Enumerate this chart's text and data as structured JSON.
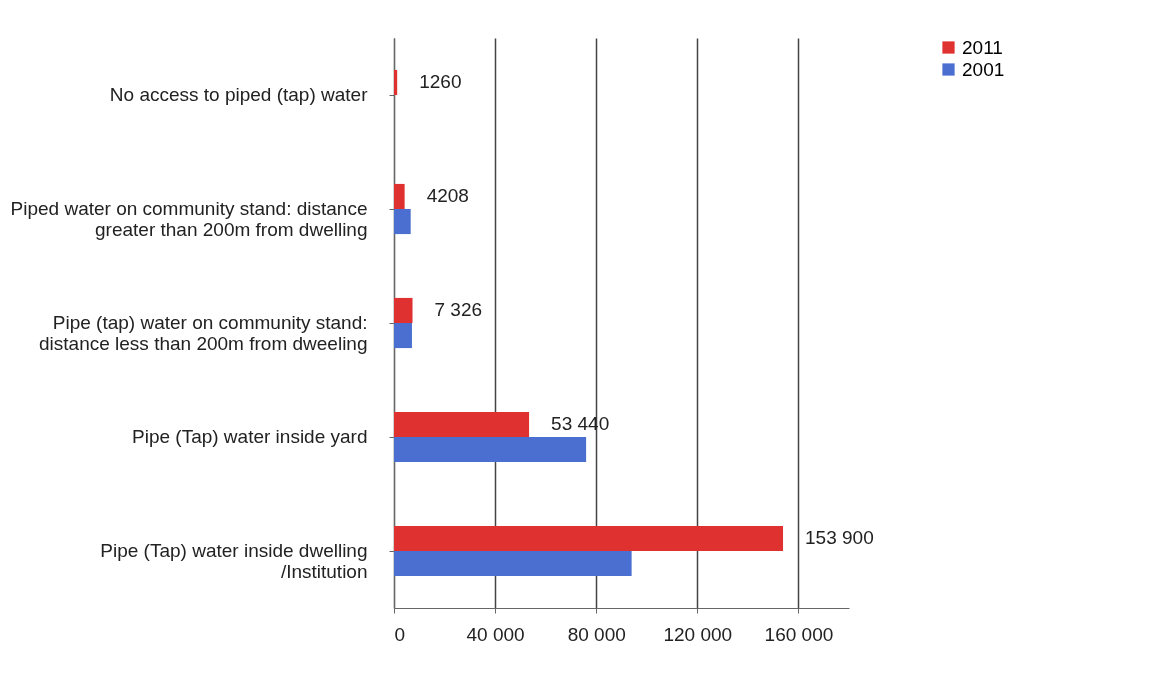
{
  "chart_data": {
    "type": "bar",
    "orientation": "horizontal",
    "categories": [
      "No access to piped (tap) water",
      "Piped water on community stand: distance greater than 200m from dwelling",
      "Pipe (tap) water on community stand: distance less than 200m from dweeling",
      "Pipe (Tap) water inside yard",
      "Pipe (Tap) water inside dwelling /Institution"
    ],
    "series": [
      {
        "name": "2011",
        "color": "#e03131",
        "values": [
          1260,
          4208,
          7326,
          53440,
          153900
        ],
        "value_labels": [
          "1260",
          "4208",
          "7 326",
          "53 440",
          "153 900"
        ]
      },
      {
        "name": "2001",
        "color": "#4a6fd0",
        "values": [
          null,
          6600,
          7100,
          76000,
          94000
        ]
      }
    ],
    "xlim": [
      0,
      180000
    ],
    "xticks": [
      0,
      {
        "value": 40000,
        "label": "40 000"
      },
      {
        "value": 80000,
        "label": "80 000"
      },
      {
        "value": 120000,
        "label": "120 000"
      },
      {
        "value": 160000,
        "label": "160 000"
      }
    ],
    "grid": "x",
    "legend": "right"
  }
}
